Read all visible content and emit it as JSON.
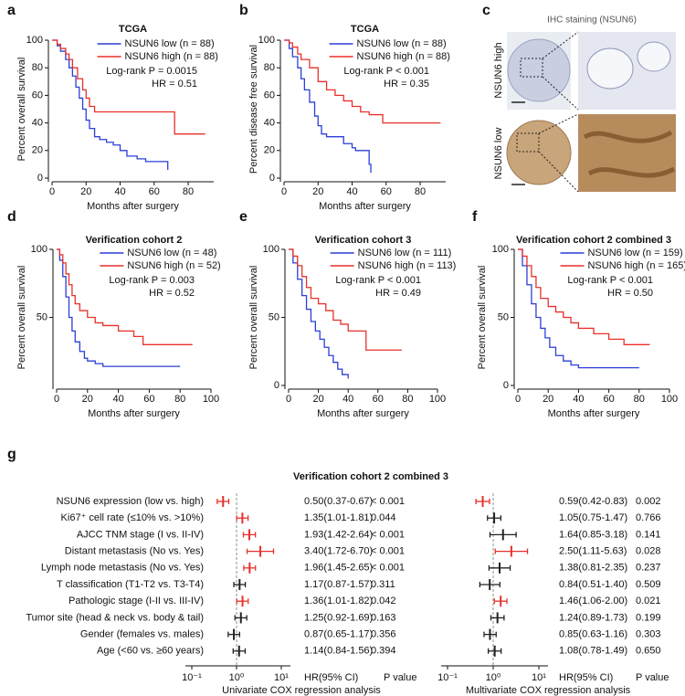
{
  "chart_data": [
    {
      "type": "line",
      "step": true,
      "panel_label": "a",
      "title": "TCGA",
      "x_label": "Months after surgery",
      "y_label": "Percent overall survival",
      "xlim": [
        0,
        95
      ],
      "xticks": [
        0,
        20,
        40,
        60,
        80
      ],
      "ylim": [
        0,
        100
      ],
      "yticks": [
        0,
        20,
        40,
        60,
        80,
        100
      ],
      "series": [
        {
          "name": "NSUN6 low (n = 88)",
          "color": "#2a3fd6",
          "x": [
            0,
            3,
            5,
            8,
            10,
            12,
            14,
            16,
            18,
            20,
            22,
            25,
            28,
            32,
            36,
            40,
            44,
            50,
            55,
            68
          ],
          "values": [
            100,
            96,
            92,
            86,
            80,
            74,
            66,
            58,
            50,
            42,
            36,
            30,
            28,
            26,
            24,
            20,
            16,
            14,
            12,
            6
          ]
        },
        {
          "name": "NSUN6 high (n = 88)",
          "color": "#e8302a",
          "x": [
            0,
            3,
            5,
            8,
            10,
            12,
            15,
            18,
            20,
            22,
            25,
            30,
            72,
            90
          ],
          "values": [
            100,
            97,
            94,
            90,
            86,
            80,
            72,
            64,
            58,
            52,
            48,
            48,
            32,
            32
          ]
        }
      ],
      "annotations": [
        "Log-rank P = 0.0015",
        "HR = 0.51"
      ]
    },
    {
      "type": "line",
      "step": true,
      "panel_label": "b",
      "title": "TCGA",
      "x_label": "Months after surgery",
      "y_label": "Percent disease free survival",
      "xlim": [
        0,
        95
      ],
      "xticks": [
        0,
        20,
        40,
        60,
        80
      ],
      "ylim": [
        0,
        100
      ],
      "yticks": [
        0,
        20,
        40,
        60,
        80,
        100
      ],
      "series": [
        {
          "name": "NSUN6 low (n = 88)",
          "color": "#2a3fd6",
          "x": [
            0,
            3,
            5,
            8,
            10,
            12,
            15,
            18,
            20,
            22,
            25,
            30,
            35,
            40,
            42,
            45,
            50,
            51
          ],
          "values": [
            100,
            94,
            88,
            80,
            72,
            64,
            55,
            45,
            38,
            32,
            30,
            30,
            25,
            22,
            20,
            20,
            10,
            4
          ]
        },
        {
          "name": "NSUN6 high (n = 88)",
          "color": "#e8302a",
          "x": [
            0,
            3,
            5,
            8,
            10,
            15,
            20,
            25,
            30,
            35,
            40,
            45,
            50,
            58,
            70,
            92
          ],
          "values": [
            100,
            98,
            95,
            90,
            86,
            80,
            70,
            64,
            60,
            56,
            52,
            48,
            46,
            40,
            40,
            40
          ]
        }
      ],
      "annotations": [
        "Log-rank P < 0.001",
        "HR = 0.35"
      ]
    },
    {
      "type": "line",
      "step": true,
      "panel_label": "d",
      "title": "Verification cohort 2",
      "x_label": "Months after surgery",
      "y_label": "Percent overall survival",
      "xlim": [
        0,
        100
      ],
      "xticks": [
        0,
        20,
        40,
        60,
        80,
        100
      ],
      "ylim": [
        0,
        100
      ],
      "yticks": [
        50,
        100
      ],
      "series": [
        {
          "name": "NSUN6 low (n = 48)",
          "color": "#2a3fd6",
          "x": [
            0,
            2,
            4,
            6,
            8,
            10,
            12,
            15,
            18,
            20,
            25,
            30,
            35,
            40,
            80
          ],
          "values": [
            100,
            92,
            80,
            65,
            50,
            40,
            32,
            25,
            20,
            18,
            16,
            14,
            14,
            14,
            14
          ]
        },
        {
          "name": "NSUN6 high (n = 52)",
          "color": "#e8302a",
          "x": [
            0,
            2,
            4,
            6,
            8,
            10,
            12,
            15,
            20,
            25,
            30,
            40,
            50,
            56,
            60,
            88
          ],
          "values": [
            100,
            96,
            90,
            82,
            74,
            66,
            60,
            55,
            50,
            46,
            44,
            40,
            36,
            30,
            30,
            30
          ]
        }
      ],
      "annotations": [
        "Log-rank P = 0.003",
        "HR = 0.52"
      ]
    },
    {
      "type": "line",
      "step": true,
      "panel_label": "e",
      "title": "Verification cohort 3",
      "x_label": "Months after surgery",
      "y_label": "Percent overall survival",
      "xlim": [
        0,
        100
      ],
      "xticks": [
        0,
        20,
        40,
        60,
        80,
        100
      ],
      "ylim": [
        0,
        100
      ],
      "yticks": [
        0,
        50,
        100
      ],
      "series": [
        {
          "name": "NSUN6 low (n = 111)",
          "color": "#2a3fd6",
          "x": [
            0,
            3,
            6,
            9,
            12,
            15,
            18,
            21,
            24,
            27,
            30,
            33,
            36,
            40
          ],
          "values": [
            100,
            90,
            78,
            66,
            56,
            47,
            40,
            34,
            28,
            22,
            17,
            12,
            8,
            5
          ]
        },
        {
          "name": "NSUN6 high (n = 113)",
          "color": "#e8302a",
          "x": [
            0,
            3,
            6,
            9,
            12,
            15,
            20,
            25,
            30,
            35,
            40,
            50,
            52,
            76
          ],
          "values": [
            100,
            95,
            88,
            80,
            72,
            64,
            60,
            55,
            48,
            45,
            40,
            40,
            26,
            26
          ]
        }
      ],
      "annotations": [
        "Log-rank P < 0.001",
        "HR = 0.49"
      ]
    },
    {
      "type": "line",
      "step": true,
      "panel_label": "f",
      "title": "Verification cohort 2 combined 3",
      "x_label": "Months after surgery",
      "y_label": "Percent overall survival",
      "xlim": [
        0,
        100
      ],
      "xticks": [
        0,
        20,
        40,
        60,
        80,
        100
      ],
      "ylim": [
        0,
        100
      ],
      "yticks": [
        0,
        50,
        100
      ],
      "series": [
        {
          "name": "NSUN6 low (n = 159)",
          "color": "#2a3fd6",
          "x": [
            0,
            3,
            6,
            9,
            12,
            15,
            18,
            21,
            25,
            30,
            35,
            40,
            50,
            60,
            80
          ],
          "values": [
            100,
            88,
            74,
            60,
            50,
            42,
            35,
            28,
            22,
            18,
            15,
            13,
            13,
            13,
            13
          ]
        },
        {
          "name": "NSUN6 high (n = 165)",
          "color": "#e8302a",
          "x": [
            0,
            3,
            6,
            9,
            12,
            15,
            20,
            25,
            30,
            35,
            40,
            50,
            60,
            70,
            87
          ],
          "values": [
            100,
            95,
            88,
            80,
            72,
            64,
            58,
            54,
            50,
            46,
            42,
            38,
            34,
            30,
            30
          ]
        }
      ],
      "annotations": [
        "Log-rank P < 0.001",
        "HR = 0.50"
      ]
    },
    {
      "type": "forest",
      "panel_label": "g",
      "title": "Verification cohort 2 combined 3",
      "x_label": "Univariate COX regression analysis",
      "xscale": "log",
      "xlim": [
        0.1,
        10
      ],
      "xticks": [
        {
          "value": 0.1,
          "label": "10⁻¹"
        },
        {
          "value": 1,
          "label": "10⁰"
        },
        {
          "value": 10,
          "label": "10¹"
        }
      ],
      "reference_line": 1,
      "column_headers": [
        "HR(95% CI)",
        "P value"
      ],
      "categories": [
        "NSUN6 expression (low vs. high)",
        "Ki67⁺ cell rate (≤10% vs. >10%)",
        "AJCC TNM stage (I vs. II-IV)",
        "Distant metastasis (No vs. Yes)",
        "Lymph node metastasis (No vs. Yes)",
        "T classification (T1-T2 vs. T3-T4)",
        "Pathologic stage (I-II vs. III-IV)",
        "Tumor site (head & neck vs. body & tail)",
        "Gender (females vs. males)",
        "Age (<60 vs. ≥60 years)"
      ],
      "values": [
        0.5,
        1.35,
        1.93,
        3.4,
        1.96,
        1.17,
        1.36,
        1.25,
        0.87,
        1.14
      ],
      "lower": [
        0.37,
        1.01,
        1.42,
        1.72,
        1.45,
        0.87,
        1.01,
        0.92,
        0.65,
        0.84
      ],
      "upper": [
        0.67,
        1.81,
        2.64,
        6.7,
        2.65,
        1.57,
        1.82,
        1.69,
        1.17,
        1.56
      ],
      "value_labels": [
        "0.50(0.37-0.67)",
        "1.35(1.01-1.81)",
        "1.93(1.42-2.64)",
        "3.40(1.72-6.70)",
        "1.96(1.45-2.65)",
        "1.17(0.87-1.57)",
        "1.36(1.01-1.82)",
        "1.25(0.92-1.69)",
        "0.87(0.65-1.17)",
        "1.14(0.84-1.56)"
      ],
      "p_values": [
        "< 0.001",
        "0.044",
        "< 0.001",
        "< 0.001",
        "< 0.001",
        "0.311",
        "0.042",
        "0.163",
        "0.356",
        "0.394"
      ],
      "colors": [
        "#e8302a",
        "#e8302a",
        "#e8302a",
        "#e8302a",
        "#e8302a",
        "#222222",
        "#e8302a",
        "#222222",
        "#222222",
        "#222222"
      ]
    },
    {
      "type": "forest",
      "x_label": "Multivariate COX regression analysis",
      "xscale": "log",
      "xlim": [
        0.1,
        10
      ],
      "xticks": [
        {
          "value": 0.1,
          "label": "10⁻¹"
        },
        {
          "value": 1,
          "label": "10⁰"
        },
        {
          "value": 10,
          "label": "10¹"
        }
      ],
      "reference_line": 1,
      "column_headers": [
        "HR(95% CI)",
        "P value"
      ],
      "values": [
        0.59,
        1.05,
        1.64,
        2.5,
        1.38,
        0.84,
        1.46,
        1.24,
        0.85,
        1.08
      ],
      "lower": [
        0.42,
        0.75,
        0.85,
        1.11,
        0.81,
        0.51,
        1.06,
        0.89,
        0.63,
        0.78
      ],
      "upper": [
        0.83,
        1.47,
        3.18,
        5.63,
        2.35,
        1.4,
        2.0,
        1.73,
        1.16,
        1.49
      ],
      "value_labels": [
        "0.59(0.42-0.83)",
        "1.05(0.75-1.47)",
        "1.64(0.85-3.18)",
        "2.50(1.11-5.63)",
        "1.38(0.81-2.35)",
        "0.84(0.51-1.40)",
        "1.46(1.06-2.00)",
        "1.24(0.89-1.73)",
        "0.85(0.63-1.16)",
        "1.08(0.78-1.49)"
      ],
      "p_values": [
        "0.002",
        "0.766",
        "0.141",
        "0.028",
        "0.237",
        "0.509",
        "0.021",
        "0.199",
        "0.303",
        "0.650"
      ],
      "colors": [
        "#e8302a",
        "#222222",
        "#222222",
        "#e8302a",
        "#222222",
        "#222222",
        "#e8302a",
        "#222222",
        "#222222",
        "#222222"
      ]
    }
  ],
  "image_panel": {
    "panel_label": "c",
    "title": "IHC staining (NSUN6)",
    "row_labels": [
      "NSUN6 high",
      "NSUN6 low"
    ]
  }
}
